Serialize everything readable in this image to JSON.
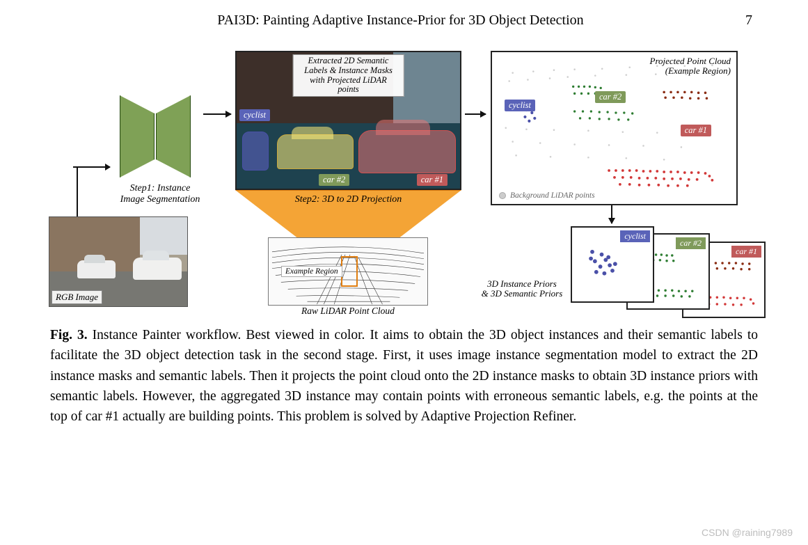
{
  "header": {
    "title": "PAI3D: Painting Adaptive Instance-Prior for 3D Object Detection",
    "page_number": "7"
  },
  "figure": {
    "rgb_label": "RGB Image",
    "segnet_label": "Step1: Instance\nImage Segmentation",
    "center": {
      "title": "Extracted 2D Semantic Labels & Instance Masks\nwith Projected LiDAR points",
      "cyclist": "cyclist",
      "car2": "car #2",
      "car1": "car #1"
    },
    "projection_label": "Step2: 3D to 2D Projection",
    "raw_lidar_caption": "Raw LiDAR Point Cloud",
    "example_region": "Example Region",
    "right": {
      "title": "Projected Point Cloud\n(Example Region)",
      "bg_legend": "Background LiDAR points",
      "cyclist": "cyclist",
      "car2": "car #2",
      "car1": "car #1"
    },
    "priors": {
      "caption": "3D Instance Priors\n& 3D Semantic Priors",
      "cyclist": "cyclist",
      "car2": "car #2",
      "car1": "car #1"
    },
    "colors": {
      "green": "#2e7d32",
      "red": "#d23838",
      "darkred": "#8a2c12",
      "purple": "#4a50a8",
      "orange": "#f4a436",
      "grey": "#bdbdbd"
    }
  },
  "caption": {
    "label": "Fig. 3.",
    "text": "Instance Painter workflow. Best viewed in color. It aims to obtain the 3D object instances and their semantic labels to facilitate the 3D object detection task in the second stage. First, it uses image instance segmentation model to extract the 2D instance masks and semantic labels. Then it projects the point cloud onto the 2D instance masks to obtain 3D instance priors with semantic labels. However, the aggregated 3D instance may contain points with erroneous semantic labels, e.g. the points at the top of car #1 actually are building points. This problem is solved by Adaptive Projection Refiner."
  },
  "watermark": "CSDN @raining7989"
}
